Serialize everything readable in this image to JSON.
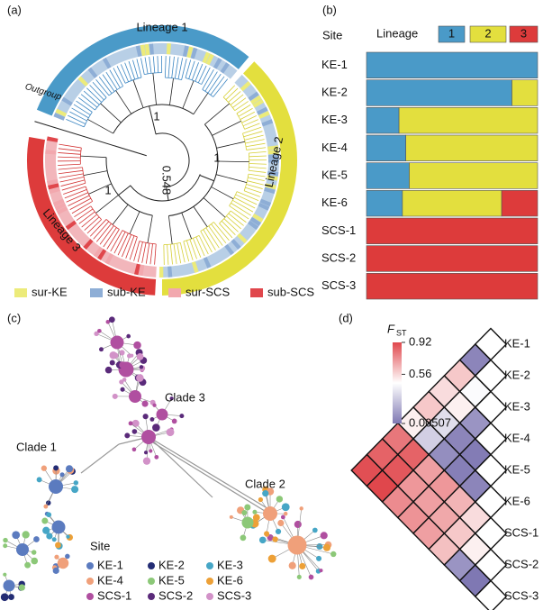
{
  "chart_data": [
    {
      "type": "tree",
      "panel": "(a)",
      "lineage_labels": [
        {
          "text": "Lineage 1",
          "color": "#4a9ac8"
        },
        {
          "text": "Lineage 2",
          "color": "#e3df3e"
        },
        {
          "text": "Lineage 3",
          "color": "#dd3b3b"
        }
      ],
      "node_labels": [
        "1",
        "1",
        "1",
        "0.548"
      ],
      "outgroup": "Outgroup",
      "legend": [
        {
          "name": "sur-KE",
          "color": "#eceb7a"
        },
        {
          "name": "sub-KE",
          "color": "#8eaed6"
        },
        {
          "name": "sur-SCS",
          "color": "#f2a8ae"
        },
        {
          "name": "sub-SCS",
          "color": "#e0474c"
        }
      ]
    },
    {
      "type": "bar",
      "panel": "(b)",
      "orientation": "horizontal",
      "stacked": true,
      "header": "Site",
      "legend_title": "Lineage",
      "categories": [
        "KE-1",
        "KE-2",
        "KE-3",
        "KE-4",
        "KE-5",
        "KE-6",
        "SCS-1",
        "SCS-2",
        "SCS-3"
      ],
      "xlim": [
        0,
        1
      ],
      "series": [
        {
          "name": "1",
          "color": "#4a9ac8",
          "values": [
            1,
            0.85,
            0.19,
            0.23,
            0.25,
            0.21,
            0,
            0,
            0
          ]
        },
        {
          "name": "2",
          "color": "#e3df3e",
          "values": [
            0,
            0.15,
            0.81,
            0.77,
            0.75,
            0.58,
            0,
            0,
            0
          ]
        },
        {
          "name": "3",
          "color": "#dd3b3b",
          "values": [
            0,
            0,
            0,
            0,
            0,
            0.21,
            1,
            1,
            1
          ]
        }
      ]
    },
    {
      "type": "network",
      "panel": "(c)",
      "clade_labels": [
        "Clade 1",
        "Clade 2",
        "Clade 3"
      ],
      "legend_title": "Site",
      "legend": [
        {
          "name": "KE-1",
          "color": "#5b7bbf"
        },
        {
          "name": "KE-2",
          "color": "#232c74"
        },
        {
          "name": "KE-3",
          "color": "#46a6c6"
        },
        {
          "name": "KE-4",
          "color": "#f0a07a"
        },
        {
          "name": "KE-5",
          "color": "#8cc878"
        },
        {
          "name": "KE-6",
          "color": "#eda037"
        },
        {
          "name": "SCS-1",
          "color": "#b04fa0"
        },
        {
          "name": "SCS-2",
          "color": "#5a2a7a"
        },
        {
          "name": "SCS-3",
          "color": "#d292c8"
        }
      ]
    },
    {
      "type": "heatmap",
      "panel": "(d)",
      "colorbar_label": "F",
      "colorbar_label_sub": "ST",
      "labels": [
        "KE-1",
        "KE-2",
        "KE-3",
        "KE-4",
        "KE-5",
        "KE-6",
        "SCS-1",
        "SCS-2",
        "SCS-3"
      ],
      "values": [
        [
          0.05
        ],
        [
          0.6,
          0.45
        ],
        [
          0.55,
          0.5,
          0.1
        ],
        [
          0.6,
          0.35,
          0.05,
          0.02
        ],
        [
          0.5,
          0.3,
          0.08,
          0.03,
          0.05
        ],
        [
          0.8,
          0.85,
          0.7,
          0.72,
          0.65,
          0.55
        ],
        [
          0.85,
          0.88,
          0.72,
          0.7,
          0.68,
          0.6,
          0.5
        ],
        [
          0.9,
          0.92,
          0.75,
          0.73,
          0.7,
          0.62,
          0.1,
          0.00507
        ]
      ],
      "clim": [
        0.00507,
        0.92
      ],
      "cticks": [
        0.92,
        0.56,
        0.00507
      ],
      "colors": [
        "#7f78b3",
        "#ffffff",
        "#e0474c"
      ]
    }
  ]
}
